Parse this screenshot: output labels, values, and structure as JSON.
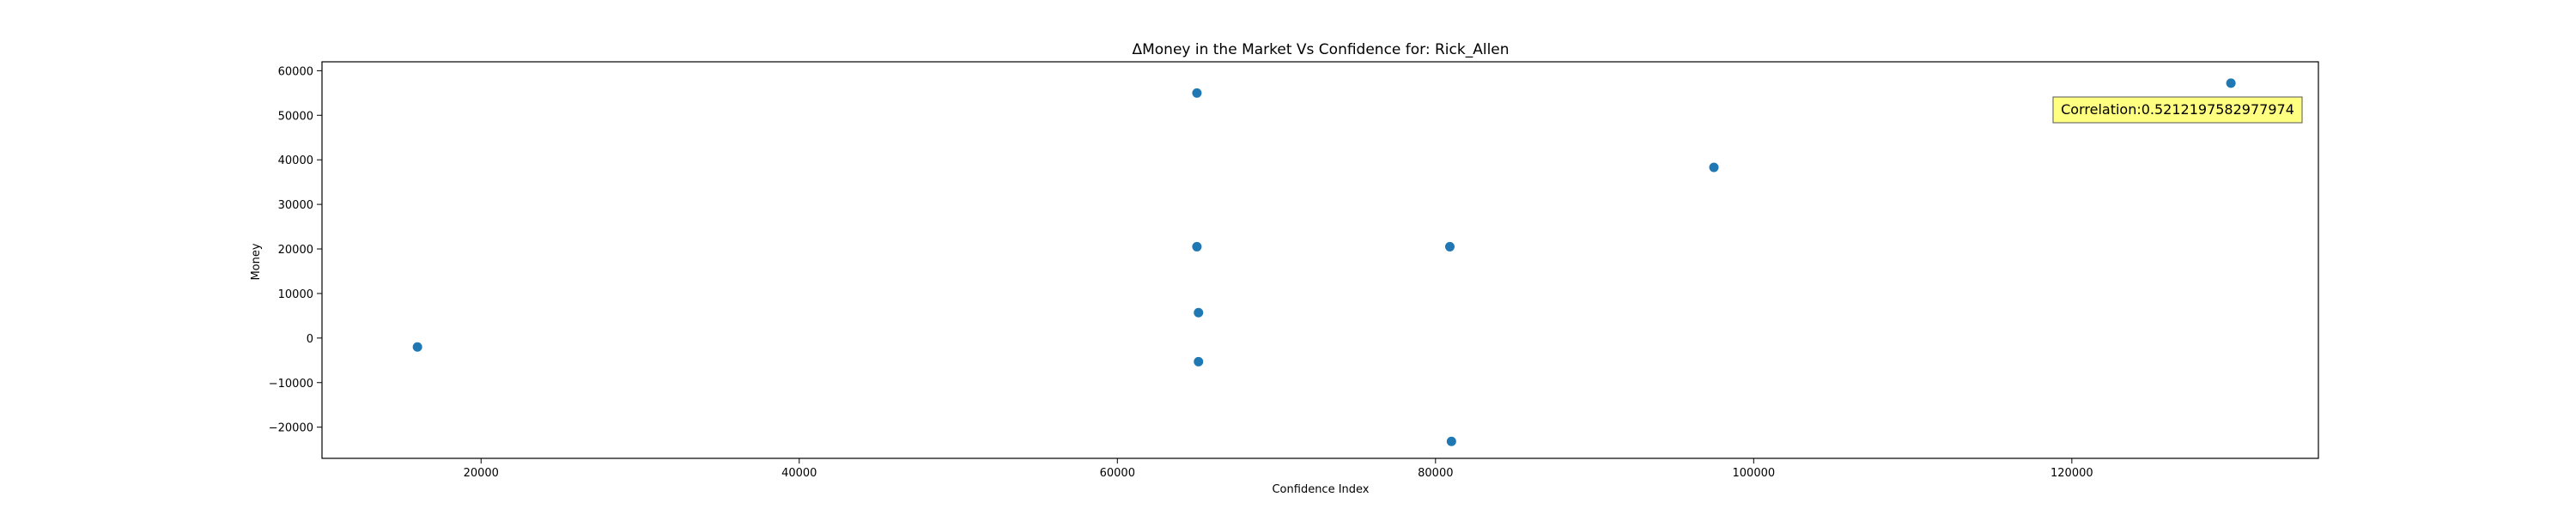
{
  "chart_data": {
    "type": "scatter",
    "title": "ΔMoney in the Market Vs Confidence for: Rick_Allen",
    "xlabel": "Confidence Index",
    "ylabel": "Money",
    "xlim": [
      10000,
      135500
    ],
    "ylim": [
      -27000,
      62000
    ],
    "xticks": [
      20000,
      40000,
      60000,
      80000,
      100000,
      120000
    ],
    "yticks": [
      -20000,
      -10000,
      0,
      10000,
      20000,
      30000,
      40000,
      50000,
      60000
    ],
    "grid": false,
    "point_color": "#1f77b4",
    "points": [
      {
        "x": 16000,
        "y": -2000
      },
      {
        "x": 65000,
        "y": 55000
      },
      {
        "x": 65000,
        "y": 20500
      },
      {
        "x": 65100,
        "y": 5700
      },
      {
        "x": 65100,
        "y": -5300
      },
      {
        "x": 80900,
        "y": 20500
      },
      {
        "x": 81000,
        "y": -23200
      },
      {
        "x": 97500,
        "y": 38300
      },
      {
        "x": 130000,
        "y": 57200
      }
    ],
    "annotation": {
      "text": "Correlation:0.5212197582977974",
      "position": "top-right",
      "box_fill": "#ffff80"
    }
  }
}
